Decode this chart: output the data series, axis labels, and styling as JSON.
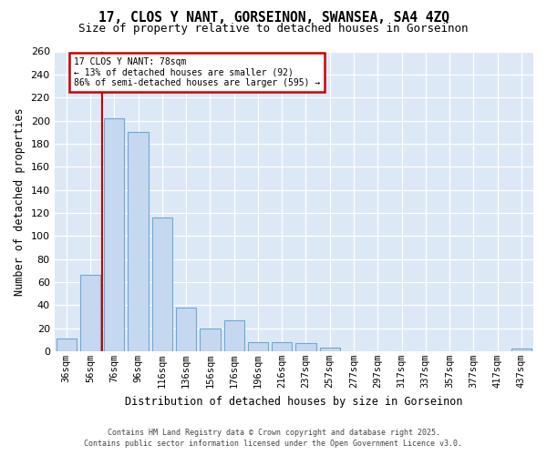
{
  "title_line1": "17, CLOS Y NANT, GORSEINON, SWANSEA, SA4 4ZQ",
  "title_line2": "Size of property relative to detached houses in Gorseinon",
  "xlabel": "Distribution of detached houses by size in Gorseinon",
  "ylabel": "Number of detached properties",
  "bar_values": [
    11,
    66,
    202,
    190,
    116,
    38,
    20,
    27,
    8,
    8,
    7,
    3,
    0,
    0,
    0,
    0,
    0,
    0,
    0,
    2
  ],
  "bin_labels": [
    "36sqm",
    "56sqm",
    "76sqm",
    "96sqm",
    "116sqm",
    "136sqm",
    "156sqm",
    "176sqm",
    "196sqm",
    "216sqm",
    "237sqm",
    "257sqm",
    "277sqm",
    "297sqm",
    "317sqm",
    "337sqm",
    "357sqm",
    "377sqm",
    "417sqm",
    "437sqm"
  ],
  "bar_color": "#c5d8f0",
  "bar_edge_color": "#6aaad4",
  "property_bin_index": 2,
  "annotation_line1": "17 CLOS Y NANT: 78sqm",
  "annotation_line2": "← 13% of detached houses are smaller (92)",
  "annotation_line3": "86% of semi-detached houses are larger (595) →",
  "annotation_box_color": "#ffffff",
  "annotation_box_edge_color": "#cc0000",
  "vline_color": "#cc0000",
  "ylim": [
    0,
    260
  ],
  "yticks": [
    0,
    20,
    40,
    60,
    80,
    100,
    120,
    140,
    160,
    180,
    200,
    220,
    240,
    260
  ],
  "plot_bg_color": "#dce8f5",
  "fig_bg_color": "#ffffff",
  "grid_color": "#ffffff",
  "footer_line1": "Contains HM Land Registry data © Crown copyright and database right 2025.",
  "footer_line2": "Contains public sector information licensed under the Open Government Licence v3.0."
}
